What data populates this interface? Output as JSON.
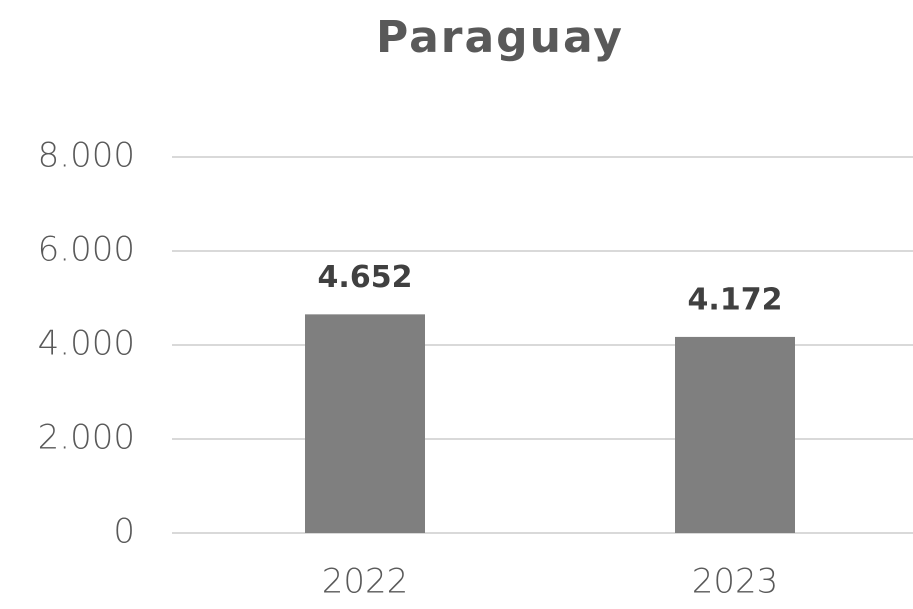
{
  "chart_data": {
    "type": "bar",
    "title": "Paraguay",
    "categories": [
      "2022",
      "2023"
    ],
    "values": [
      4652,
      4172
    ],
    "value_labels": [
      "4.652",
      "4.172"
    ],
    "color": "#7f7f7f",
    "ylim": [
      0,
      8000
    ],
    "yticks": [
      0,
      {
        "value": 2000,
        "label": "2.000"
      },
      {
        "value": 4000,
        "label": "4.000"
      },
      {
        "value": 6000,
        "label": "6.000"
      },
      {
        "value": 8000,
        "label": "8.000"
      }
    ],
    "grid": true
  }
}
